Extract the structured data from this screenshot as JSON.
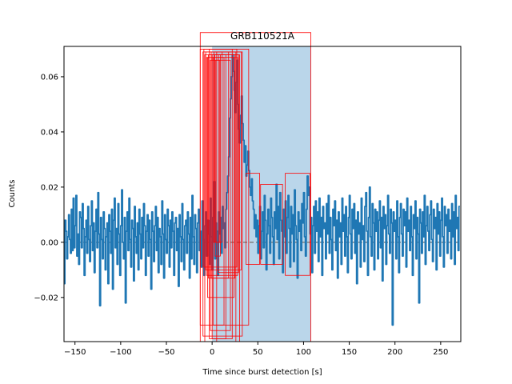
{
  "chart_data": {
    "type": "line",
    "title": "GRB110521A",
    "xlabel": "Time since burst detection [s]",
    "ylabel": "Counts",
    "xlim": [
      -162,
      272
    ],
    "ylim": [
      -0.036,
      0.071
    ],
    "xticks": [
      -150,
      -100,
      -50,
      0,
      50,
      100,
      150,
      200,
      250
    ],
    "xtick_labels": [
      "−150",
      "−100",
      "−50",
      "0",
      "50",
      "100",
      "150",
      "200",
      "250"
    ],
    "yticks": [
      -0.02,
      0.0,
      0.02,
      0.04,
      0.06
    ],
    "ytick_labels": [
      "−0.02",
      "0.00",
      "0.02",
      "0.04",
      "0.06"
    ],
    "grid": false,
    "colors": {
      "series": "#1f77b4",
      "zero_line": "#7f7f7f",
      "span": "#bad6ea",
      "boxes": "#ff0000"
    },
    "span": {
      "x0": 0,
      "x1": 108
    },
    "zero_line_y": 0.0,
    "series": [
      {
        "x_start": -162,
        "x_step": 1.0,
        "values": [
          -0.015,
          0.008,
          0.004,
          -0.006,
          0.002,
          0.01,
          0.001,
          -0.004,
          0.012,
          -0.003,
          0.016,
          -0.002,
          0.006,
          0.017,
          -0.005,
          0.003,
          -0.008,
          0.011,
          0.009,
          -0.002,
          0.014,
          0.005,
          -0.012,
          0.002,
          0.008,
          -0.004,
          0.013,
          0.001,
          -0.007,
          0.006,
          0.015,
          -0.003,
          0.007,
          -0.011,
          0.004,
          0.012,
          -0.002,
          0.018,
          0.003,
          -0.023,
          0.009,
          0.001,
          -0.006,
          0.011,
          0.005,
          -0.01,
          0.002,
          0.007,
          -0.015,
          0.01,
          0.004,
          -0.004,
          0.012,
          -0.017,
          0.008,
          0.016,
          -0.002,
          0.005,
          -0.008,
          0.014,
          0.003,
          -0.012,
          0.006,
          0.019,
          0.0,
          -0.006,
          0.009,
          -0.022,
          0.004,
          0.011,
          -0.003,
          0.016,
          0.001,
          -0.009,
          0.008,
          0.005,
          -0.014,
          0.013,
          0.002,
          -0.004,
          0.007,
          -0.01,
          0.012,
          0.003,
          -0.006,
          0.009,
          -0.002,
          0.014,
          0.006,
          -0.012,
          0.004,
          0.01,
          -0.005,
          0.008,
          0.001,
          -0.017,
          0.011,
          0.004,
          -0.007,
          0.006,
          0.013,
          -0.003,
          0.009,
          -0.011,
          0.005,
          0.002,
          -0.008,
          0.015,
          0.003,
          -0.013,
          0.01,
          0.001,
          -0.004,
          0.012,
          0.006,
          -0.009,
          0.008,
          -0.002,
          0.011,
          0.004,
          -0.012,
          0.007,
          0.009,
          -0.003,
          0.005,
          -0.016,
          0.01,
          0.002,
          -0.007,
          0.014,
          0.001,
          -0.01,
          0.006,
          0.008,
          -0.004,
          0.011,
          0.003,
          -0.013,
          0.009,
          -0.006,
          0.017,
          0.002,
          -0.008,
          0.01,
          0.005,
          -0.011,
          0.007,
          0.012,
          -0.003,
          0.004,
          -0.009,
          0.015,
          0.001,
          -0.012,
          0.006,
          0.011,
          -0.005,
          0.008,
          0.003,
          -0.008,
          0.016,
          0.002,
          -0.01,
          0.009,
          0.022,
          -0.006,
          0.007,
          0.004,
          -0.012,
          0.011,
          0.003,
          0.009,
          -0.004,
          0.013,
          0.005,
          0.007,
          -0.002,
          0.012,
          0.018,
          0.024,
          0.031,
          0.045,
          0.052,
          0.06,
          0.068,
          0.062,
          0.055,
          0.047,
          0.058,
          0.066,
          0.05,
          0.041,
          0.036,
          0.046,
          0.053,
          0.043,
          0.037,
          0.029,
          0.035,
          0.024,
          0.028,
          0.033,
          0.026,
          0.02,
          0.017,
          0.023,
          0.015,
          0.012,
          0.005,
          0.01,
          0.002,
          0.008,
          -0.004,
          0.006,
          0.013,
          -0.006,
          0.004,
          0.011,
          -0.002,
          0.017,
          0.008,
          -0.01,
          0.003,
          0.012,
          0.006,
          -0.004,
          0.016,
          0.009,
          0.002,
          -0.008,
          0.011,
          0.005,
          0.021,
          0.001,
          0.013,
          -0.006,
          0.018,
          0.008,
          0.004,
          -0.011,
          0.012,
          0.002,
          0.015,
          -0.004,
          0.009,
          0.017,
          0.005,
          -0.009,
          0.013,
          0.003,
          0.01,
          -0.007,
          0.019,
          0.006,
          0.001,
          -0.013,
          0.011,
          0.004,
          0.008,
          -0.003,
          0.014,
          0.007,
          0.018,
          0.002,
          -0.005,
          0.012,
          0.024,
          0.017,
          0.02,
          0.003,
          0.009,
          -0.011,
          0.006,
          0.013,
          -0.004,
          0.015,
          0.004,
          0.011,
          -0.007,
          0.016,
          0.002,
          0.009,
          -0.012,
          0.013,
          0.005,
          0.007,
          -0.006,
          0.014,
          0.003,
          0.017,
          -0.004,
          0.009,
          0.001,
          -0.01,
          0.012,
          0.006,
          0.015,
          -0.003,
          0.008,
          -0.013,
          0.011,
          0.002,
          0.007,
          -0.008,
          0.016,
          0.004,
          0.01,
          -0.005,
          0.013,
          0.002,
          -0.011,
          0.009,
          0.017,
          0.003,
          -0.006,
          0.012,
          0.005,
          0.014,
          -0.004,
          0.008,
          -0.015,
          0.011,
          0.003,
          0.007,
          -0.009,
          0.016,
          0.001,
          0.006,
          -0.007,
          0.013,
          0.018,
          0.004,
          -0.012,
          0.009,
          0.02,
          0.002,
          -0.005,
          0.014,
          0.007,
          -0.01,
          0.012,
          0.004,
          0.011,
          -0.006,
          0.008,
          0.015,
          -0.002,
          0.009,
          -0.014,
          0.013,
          0.005,
          0.01,
          -0.008,
          0.006,
          0.017,
          0.003,
          -0.004,
          0.012,
          0.007,
          -0.03,
          0.011,
          0.004,
          0.008,
          -0.006,
          0.015,
          0.002,
          -0.011,
          0.009,
          0.014,
          0.003,
          -0.005,
          0.012,
          0.006,
          0.011,
          -0.009,
          0.016,
          0.004,
          0.008,
          -0.003,
          0.013,
          0.002,
          -0.012,
          0.01,
          0.005,
          0.015,
          -0.006,
          0.009,
          0.003,
          -0.022,
          0.012,
          0.007,
          -0.004,
          0.011,
          0.002,
          0.017,
          -0.008,
          0.006,
          0.013,
          0.004,
          -0.003,
          0.01,
          0.015,
          0.001,
          -0.007,
          0.012,
          0.005,
          0.009,
          -0.01,
          0.014,
          0.003,
          0.011,
          -0.005,
          0.008,
          0.016,
          0.002,
          -0.009,
          0.013,
          0.006,
          0.01,
          -0.004,
          0.012,
          0.004,
          0.008,
          -0.006,
          0.014,
          0.002,
          0.011,
          -0.008,
          0.017,
          0.005,
          0.009,
          -0.003,
          0.013
        ]
      }
    ],
    "boxes": [
      {
        "x0": -13,
        "x1": 40,
        "y0": -0.03,
        "y1": 0.07
      },
      {
        "x0": -10,
        "x1": 33,
        "y0": -0.034,
        "y1": 0.069
      },
      {
        "x0": -8,
        "x1": 30,
        "y0": -0.036,
        "y1": 0.068
      },
      {
        "x0": -6,
        "x1": 28,
        "y0": -0.012,
        "y1": 0.067
      },
      {
        "x0": -4,
        "x1": 25,
        "y0": -0.013,
        "y1": 0.068
      },
      {
        "x0": -3,
        "x1": 22,
        "y0": -0.035,
        "y1": 0.07
      },
      {
        "x0": -2,
        "x1": 20,
        "y0": -0.032,
        "y1": 0.066
      },
      {
        "x0": -1,
        "x1": 18,
        "y0": -0.013,
        "y1": 0.069
      },
      {
        "x0": 0,
        "x1": 15,
        "y0": -0.035,
        "y1": 0.068
      },
      {
        "x0": 1,
        "x1": 13,
        "y0": -0.03,
        "y1": 0.067
      },
      {
        "x0": 2,
        "x1": 11,
        "y0": 0.0,
        "y1": 0.069
      },
      {
        "x0": 3,
        "x1": 9,
        "y0": -0.005,
        "y1": 0.068
      },
      {
        "x0": 4,
        "x1": 8,
        "y0": 0.0,
        "y1": 0.066
      },
      {
        "x0": -9,
        "x1": 27,
        "y0": -0.009,
        "y1": 0.07
      },
      {
        "x0": -5,
        "x1": 24,
        "y0": -0.02,
        "y1": 0.067
      },
      {
        "x0": 5,
        "x1": 26,
        "y0": -0.036,
        "y1": 0.069
      },
      {
        "x0": 7,
        "x1": 29,
        "y0": -0.011,
        "y1": 0.068
      },
      {
        "x0": -7,
        "x1": 32,
        "y0": -0.01,
        "y1": 0.069
      },
      {
        "x0": -13,
        "x1": 108,
        "y0": -0.036,
        "y1": 0.076
      },
      {
        "x0": 37,
        "x1": 52,
        "y0": -0.008,
        "y1": 0.025
      },
      {
        "x0": 53,
        "x1": 77,
        "y0": -0.008,
        "y1": 0.021
      },
      {
        "x0": 80,
        "x1": 107,
        "y0": -0.012,
        "y1": 0.025
      }
    ]
  }
}
